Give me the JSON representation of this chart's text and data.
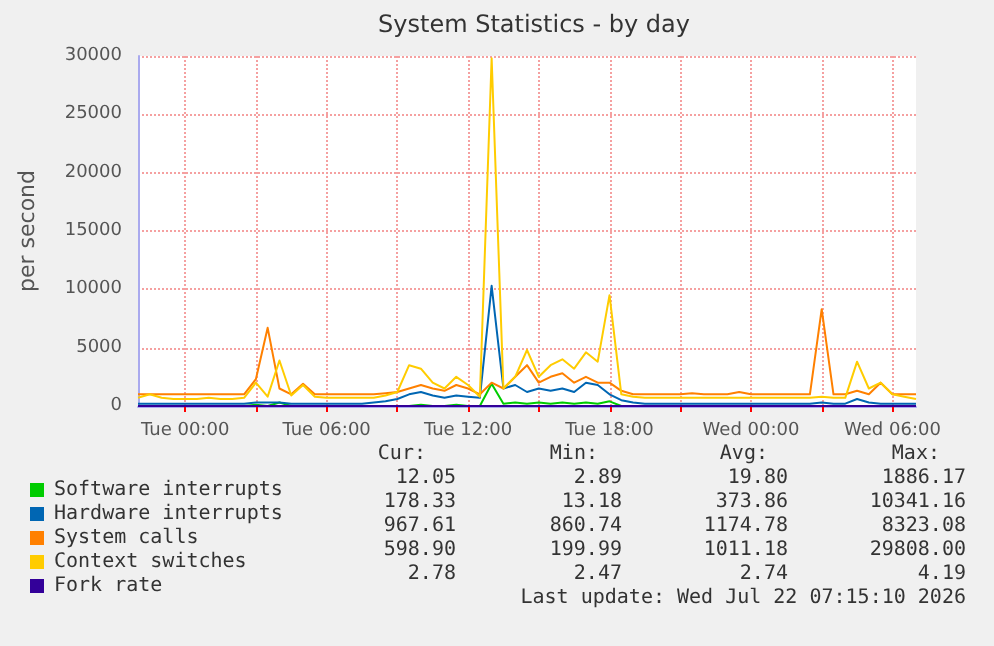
{
  "chart_data": {
    "type": "line",
    "title": "System Statistics - by day",
    "ylabel": "per second",
    "x": [
      "2026-07-20T22:00",
      "2026-07-20T22:30",
      "2026-07-20T23:00",
      "2026-07-20T23:30",
      "2026-07-21T00:00",
      "2026-07-21T00:30",
      "2026-07-21T01:00",
      "2026-07-21T01:30",
      "2026-07-21T02:00",
      "2026-07-21T02:30",
      "2026-07-21T03:00",
      "2026-07-21T03:30",
      "2026-07-21T04:00",
      "2026-07-21T04:30",
      "2026-07-21T05:00",
      "2026-07-21T05:30",
      "2026-07-21T06:00",
      "2026-07-21T06:30",
      "2026-07-21T07:00",
      "2026-07-21T07:30",
      "2026-07-21T08:00",
      "2026-07-21T08:30",
      "2026-07-21T09:00",
      "2026-07-21T09:30",
      "2026-07-21T10:00",
      "2026-07-21T10:30",
      "2026-07-21T11:00",
      "2026-07-21T11:30",
      "2026-07-21T12:00",
      "2026-07-21T12:30",
      "2026-07-21T13:00",
      "2026-07-21T13:30",
      "2026-07-21T14:00",
      "2026-07-21T14:30",
      "2026-07-21T15:00",
      "2026-07-21T15:30",
      "2026-07-21T16:00",
      "2026-07-21T16:30",
      "2026-07-21T17:00",
      "2026-07-21T17:30",
      "2026-07-21T18:00",
      "2026-07-21T18:30",
      "2026-07-21T19:00",
      "2026-07-21T19:30",
      "2026-07-21T20:00",
      "2026-07-21T20:30",
      "2026-07-21T21:00",
      "2026-07-21T21:30",
      "2026-07-21T22:00",
      "2026-07-21T22:30",
      "2026-07-21T23:00",
      "2026-07-21T23:30",
      "2026-07-22T00:00",
      "2026-07-22T00:30",
      "2026-07-22T01:00",
      "2026-07-22T01:30",
      "2026-07-22T02:00",
      "2026-07-22T02:30",
      "2026-07-22T03:00",
      "2026-07-22T03:30",
      "2026-07-22T04:00",
      "2026-07-22T04:30",
      "2026-07-22T05:00",
      "2026-07-22T05:30",
      "2026-07-22T06:00",
      "2026-07-22T06:30",
      "2026-07-22T07:00"
    ],
    "series": [
      {
        "name": "Software interrupts",
        "color": "#00cc00",
        "values": [
          null,
          null,
          null,
          null,
          null,
          null,
          null,
          null,
          null,
          0,
          100,
          0,
          300,
          0,
          null,
          null,
          null,
          null,
          null,
          null,
          null,
          null,
          null,
          0,
          100,
          0,
          0,
          100,
          0,
          0,
          1900,
          200,
          300,
          200,
          300,
          200,
          300,
          200,
          300,
          200,
          400,
          0,
          null,
          null,
          null,
          null,
          null,
          null,
          null,
          null,
          null,
          null,
          null,
          null,
          null,
          null,
          null,
          null,
          null,
          null,
          null,
          null,
          null,
          null,
          null,
          null,
          null
        ]
      },
      {
        "name": "Hardware interrupts",
        "color": "#0066b3",
        "values": [
          200,
          200,
          200,
          200,
          200,
          200,
          200,
          200,
          200,
          200,
          300,
          300,
          300,
          200,
          200,
          200,
          200,
          200,
          200,
          200,
          300,
          400,
          600,
          1000,
          1200,
          900,
          700,
          900,
          800,
          700,
          10300,
          1500,
          1800,
          1200,
          1500,
          1300,
          1500,
          1200,
          2000,
          1800,
          1000,
          500,
          300,
          200,
          200,
          200,
          200,
          200,
          200,
          200,
          200,
          200,
          200,
          200,
          200,
          200,
          200,
          200,
          300,
          200,
          200,
          600,
          300,
          200,
          200,
          200,
          200
        ]
      },
      {
        "name": "System calls",
        "color": "#ff8000",
        "values": [
          1000,
          1000,
          1000,
          1000,
          1000,
          1000,
          1000,
          1000,
          1000,
          1000,
          2300,
          6700,
          1500,
          1000,
          1900,
          1000,
          1000,
          1000,
          1000,
          1000,
          1000,
          1100,
          1200,
          1500,
          1800,
          1500,
          1300,
          1800,
          1500,
          1000,
          2000,
          1500,
          2500,
          3500,
          2000,
          2500,
          2800,
          2000,
          2500,
          2000,
          2000,
          1300,
          1000,
          1000,
          1000,
          1000,
          1000,
          1100,
          1000,
          1000,
          1000,
          1200,
          1000,
          1000,
          1000,
          1000,
          1000,
          1000,
          8300,
          1000,
          1000,
          1300,
          1000,
          2000,
          1000,
          1000,
          1000
        ]
      },
      {
        "name": "Context switches",
        "color": "#ffcc00",
        "values": [
          700,
          1000,
          700,
          600,
          600,
          600,
          700,
          600,
          600,
          700,
          2000,
          800,
          3900,
          900,
          1800,
          800,
          700,
          700,
          700,
          700,
          700,
          900,
          1200,
          3500,
          3200,
          2000,
          1500,
          2500,
          1800,
          800,
          29800,
          1500,
          2500,
          4800,
          2500,
          3500,
          4000,
          3200,
          4600,
          3800,
          9500,
          1000,
          800,
          700,
          700,
          700,
          700,
          700,
          700,
          700,
          700,
          700,
          700,
          700,
          700,
          700,
          700,
          700,
          800,
          700,
          700,
          3800,
          1500,
          2000,
          1000,
          800,
          600
        ]
      },
      {
        "name": "Fork rate",
        "color": "#330099",
        "values": [
          0,
          0,
          0,
          0,
          0,
          0,
          0,
          0,
          0,
          0,
          0,
          0,
          0,
          0,
          0,
          0,
          0,
          0,
          0,
          0,
          0,
          0,
          0,
          0,
          0,
          0,
          0,
          0,
          0,
          0,
          0,
          0,
          0,
          0,
          0,
          0,
          0,
          0,
          0,
          0,
          0,
          0,
          0,
          0,
          0,
          0,
          0,
          0,
          0,
          0,
          0,
          0,
          0,
          0,
          0,
          0,
          0,
          0,
          0,
          0,
          0,
          0,
          0,
          0,
          0,
          0,
          0
        ]
      }
    ],
    "xlim": [
      "2026-07-20T22:00",
      "2026-07-22T07:00"
    ],
    "xticks": [
      {
        "value": "2026-07-21T00:00",
        "label": "Tue 00:00"
      },
      {
        "value": "2026-07-21T03:00",
        "label": null
      },
      {
        "value": "2026-07-21T06:00",
        "label": "Tue 06:00"
      },
      {
        "value": "2026-07-21T09:00",
        "label": null
      },
      {
        "value": "2026-07-21T12:00",
        "label": "Tue 12:00"
      },
      {
        "value": "2026-07-21T15:00",
        "label": null
      },
      {
        "value": "2026-07-21T18:00",
        "label": "Tue 18:00"
      },
      {
        "value": "2026-07-21T21:00",
        "label": null
      },
      {
        "value": "2026-07-22T00:00",
        "label": "Wed 00:00"
      },
      {
        "value": "2026-07-22T03:00",
        "label": null
      },
      {
        "value": "2026-07-22T06:00",
        "label": "Wed 06:00"
      }
    ],
    "ylim": [
      0,
      30000
    ],
    "yticks": [
      0,
      5000,
      10000,
      15000,
      20000,
      25000,
      30000
    ],
    "grid": true,
    "legend": "bottom left",
    "annotations": [
      "Cur:",
      "Min:",
      "Avg:",
      "Max:",
      "12.05",
      "2.89",
      "19.80",
      "1886.17",
      "178.33",
      "13.18",
      "373.86",
      "10341.16",
      "967.61",
      "860.74",
      "1174.78",
      "8323.08",
      "598.90",
      "199.99",
      "1011.18",
      "29808.00",
      "2.78",
      "2.47",
      "2.74",
      "4.19",
      "Last update: Wed Jul 22 07:15:10 2026"
    ]
  }
}
